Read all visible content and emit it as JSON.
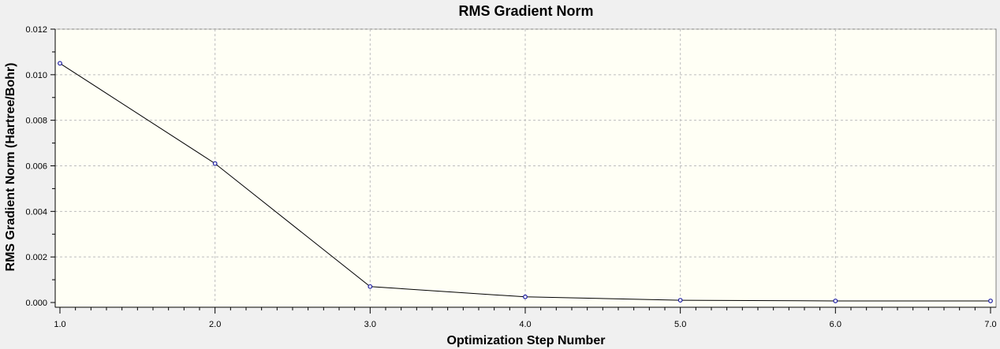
{
  "chart_data": {
    "type": "line",
    "title": "RMS Gradient Norm",
    "xlabel": "Optimization Step Number",
    "ylabel": "RMS Gradient Norm (Hartree/Bohr)",
    "xlim": [
      1.0,
      7.0
    ],
    "ylim": [
      0.0,
      0.012
    ],
    "x_ticks": [
      "1.0",
      "2.0",
      "3.0",
      "4.0",
      "5.0",
      "6.0",
      "7.0"
    ],
    "y_ticks": [
      "0.000",
      "0.002",
      "0.004",
      "0.006",
      "0.008",
      "0.010",
      "0.012"
    ],
    "grid": true,
    "legend": "none",
    "series": [
      {
        "x": [
          1,
          2,
          3,
          4,
          5,
          6,
          7
        ],
        "values": [
          0.0105,
          0.0061,
          0.0007,
          0.00025,
          0.0001,
          7e-05,
          7e-05
        ]
      }
    ],
    "colors": {
      "plot_background": "#fffff5",
      "window_background": "#f0f0f0",
      "grid": "#bdbdbd",
      "line": "#000000",
      "marker": "#1a1aa0"
    }
  }
}
